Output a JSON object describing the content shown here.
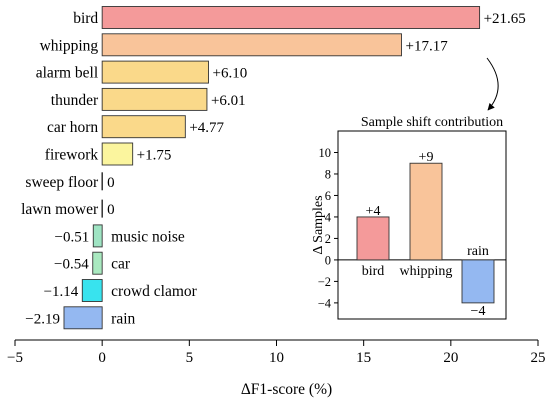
{
  "chart_data": [
    {
      "type": "bar",
      "orientation": "horizontal",
      "xlabel": "ΔF1-score (%)",
      "xlim": [
        -5,
        25
      ],
      "xticks": [
        -5,
        0,
        5,
        10,
        15,
        20,
        25
      ],
      "xtick_labels": [
        "−5",
        "0",
        "5",
        "10",
        "15",
        "20",
        "25"
      ],
      "grid": false,
      "categories": [
        "bird",
        "whipping",
        "alarm bell",
        "thunder",
        "car horn",
        "firework",
        "sweep floor",
        "lawn mower",
        "music noise",
        "car",
        "crowd clamor",
        "rain"
      ],
      "values": [
        21.65,
        17.17,
        6.1,
        6.01,
        4.77,
        1.75,
        0,
        0,
        -0.51,
        -0.54,
        -1.14,
        -2.19
      ],
      "value_labels": [
        "+21.65",
        "+17.17",
        "+6.10",
        "+6.01",
        "+4.77",
        "+1.75",
        "0",
        "0",
        "−0.51",
        "−0.54",
        "−1.14",
        "−2.19"
      ],
      "colors": [
        "#f49a9a",
        "#f9c49a",
        "#fad98a",
        "#fad98a",
        "#fad98a",
        "#fbf59e",
        "#ffffff",
        "#ffffff",
        "#9fe4c3",
        "#a9e9c0",
        "#38e3ee",
        "#94b8f1"
      ]
    },
    {
      "type": "bar",
      "title": "Sample shift contribution",
      "ylabel": "Δ Samples",
      "ylim": [
        -5.5,
        12
      ],
      "yticks": [
        -4,
        -2,
        0,
        2,
        4,
        6,
        8,
        10
      ],
      "ytick_labels": [
        "−4",
        "−2",
        "0",
        "2",
        "4",
        "6",
        "8",
        "10"
      ],
      "categories": [
        "bird",
        "whipping",
        "rain"
      ],
      "values": [
        4,
        9,
        -4
      ],
      "value_labels": [
        "+4",
        "+9",
        "−4"
      ],
      "colors": [
        "#f49a9a",
        "#f9c49a",
        "#94b8f1"
      ]
    }
  ]
}
